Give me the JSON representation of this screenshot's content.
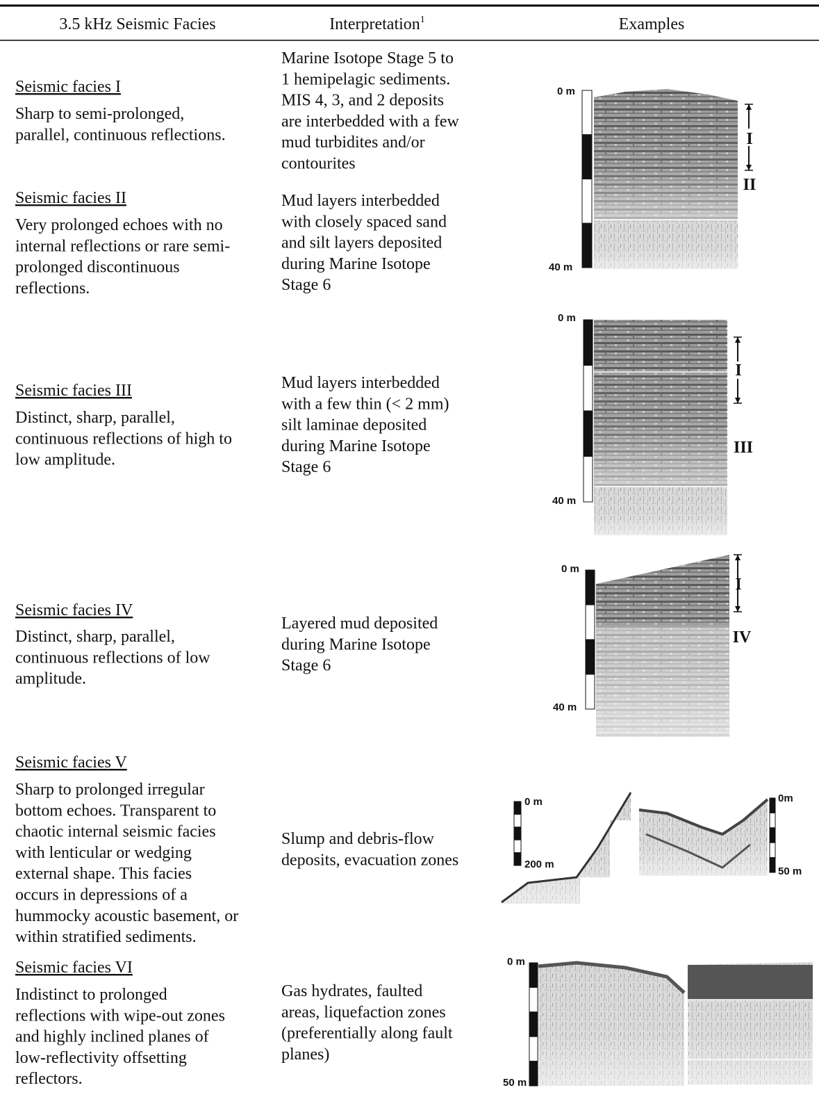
{
  "table": {
    "headers": [
      "3.5 kHz Seismic Facies",
      "Interpretation",
      "Examples"
    ],
    "header_superscript": "1",
    "rows": [
      {
        "facies": "Seismic facies I",
        "description": [
          "Sharp to semi-prolonged,",
          "parallel, continuous reflections."
        ],
        "interpretation": [
          "Marine Isotope Stage 5 to",
          "1 hemipelagic sediments.",
          "MIS 4, 3, and 2 deposits",
          "are interbedded with a few",
          "mud turbidites and/or",
          "contourites"
        ],
        "example_labels": [
          "0 m",
          "40 m",
          "I",
          "II"
        ]
      },
      {
        "facies": "Seismic facies II",
        "description": [
          "Very prolonged echoes with no",
          "internal reflections or rare semi-",
          "prolonged discontinuous",
          "reflections."
        ],
        "interpretation": [
          "Mud layers interbedded",
          "with closely spaced sand",
          "and silt layers deposited",
          "during Marine Isotope",
          "Stage 6"
        ]
      },
      {
        "facies": "Seismic facies III",
        "description": [
          "Distinct, sharp, parallel,",
          "continuous reflections of high to",
          "low amplitude."
        ],
        "interpretation": [
          "Mud layers interbedded",
          "with a few thin (< 2 mm)",
          "silt laminae deposited",
          "during Marine Isotope",
          "Stage 6"
        ],
        "example_labels": [
          "0 m",
          "40 m",
          "I",
          "III"
        ]
      },
      {
        "facies": "Seismic facies IV",
        "description": [
          "Distinct, sharp, parallel,",
          "continuous reflections of low",
          "amplitude."
        ],
        "interpretation": [
          "Layered mud deposited",
          "during Marine Isotope",
          "Stage 6"
        ],
        "example_labels": [
          "0 m",
          "40 m",
          "I",
          "IV"
        ]
      },
      {
        "facies": "Seismic facies V",
        "description": [
          "Sharp to prolonged irregular",
          "bottom echoes. Transparent to",
          "chaotic internal seismic facies",
          "with lenticular or wedging",
          "external shape. This facies",
          "occurs in depressions of a",
          "hummocky acoustic basement, or",
          "within stratified sediments."
        ],
        "interpretation": [
          "Slump and debris-flow",
          "deposits, evacuation zones"
        ],
        "example_labels": [
          "0 m",
          "200 m",
          "0m",
          "50 m"
        ]
      },
      {
        "facies": "Seismic facies VI",
        "description": [
          "Indistinct to prolonged",
          "reflections with wipe-out zones",
          "and highly inclined planes of",
          "low-reflectivity offsetting",
          "reflectors."
        ],
        "interpretation": [
          "Gas hydrates, faulted",
          "areas, liquefaction zones",
          "(preferentially along fault",
          "planes)"
        ],
        "example_labels": [
          "0 m",
          "50 m"
        ]
      }
    ]
  }
}
